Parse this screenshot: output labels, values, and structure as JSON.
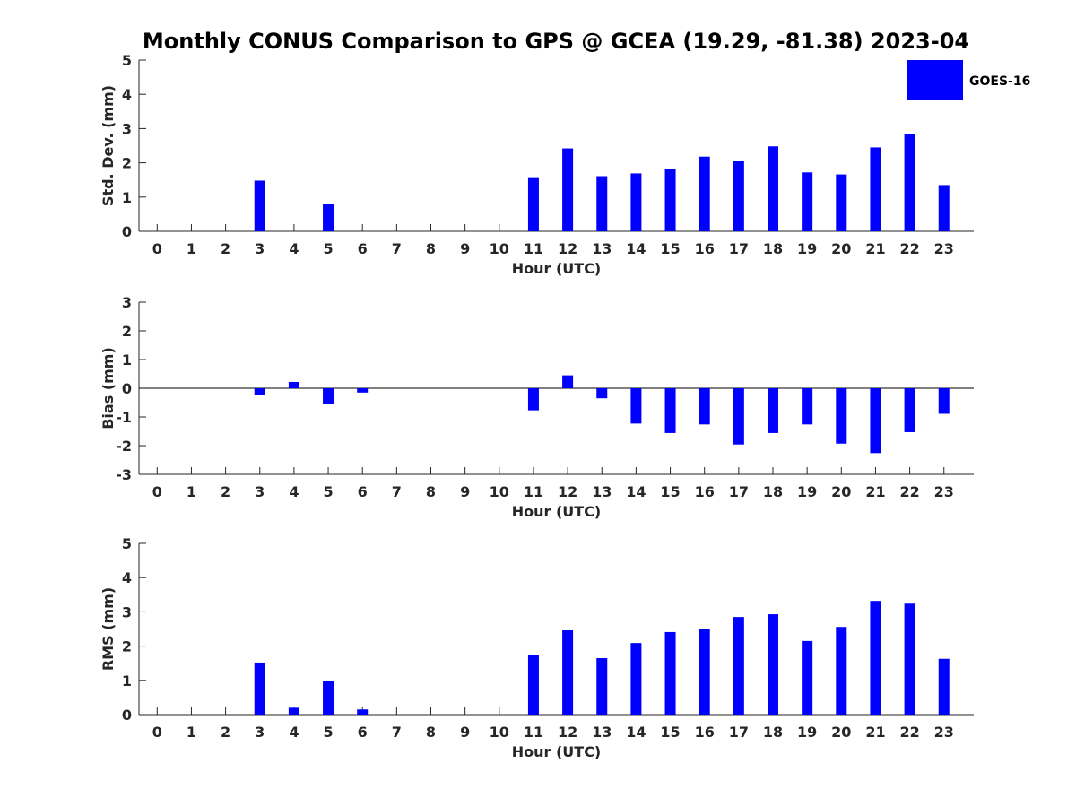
{
  "title": "Monthly CONUS Comparison to GPS @ GCEA (19.29, -81.38) 2023-04",
  "legend": {
    "label": "GOES-16",
    "color": "#0000ff"
  },
  "chart_data": [
    {
      "type": "bar",
      "xlabel": "Hour (UTC)",
      "ylabel": "Std. Dev. (mm)",
      "ylim": [
        0,
        5
      ],
      "yticks": [
        0,
        1,
        2,
        3,
        4,
        5
      ],
      "categories": [
        "0",
        "1",
        "2",
        "3",
        "4",
        "5",
        "6",
        "7",
        "8",
        "9",
        "10",
        "11",
        "12",
        "13",
        "14",
        "15",
        "16",
        "17",
        "18",
        "19",
        "20",
        "21",
        "22",
        "23"
      ],
      "series": [
        {
          "name": "GOES-16",
          "values": [
            null,
            null,
            null,
            1.48,
            null,
            0.8,
            null,
            null,
            null,
            null,
            null,
            1.58,
            2.42,
            1.61,
            1.69,
            1.82,
            2.18,
            2.05,
            2.48,
            1.72,
            1.66,
            2.45,
            2.84,
            1.35
          ]
        }
      ]
    },
    {
      "type": "bar",
      "xlabel": "Hour (UTC)",
      "ylabel": "Bias (mm)",
      "ylim": [
        -3,
        3
      ],
      "yticks": [
        -3,
        -2,
        -1,
        0,
        1,
        2,
        3
      ],
      "zero_line": true,
      "categories": [
        "0",
        "1",
        "2",
        "3",
        "4",
        "5",
        "6",
        "7",
        "8",
        "9",
        "10",
        "11",
        "12",
        "13",
        "14",
        "15",
        "16",
        "17",
        "18",
        "19",
        "20",
        "21",
        "22",
        "23"
      ],
      "series": [
        {
          "name": "GOES-16",
          "values": [
            null,
            null,
            null,
            -0.25,
            0.22,
            -0.55,
            -0.15,
            null,
            null,
            null,
            null,
            -0.77,
            0.45,
            -0.35,
            -1.23,
            -1.56,
            -1.26,
            -1.96,
            -1.56,
            -1.26,
            -1.93,
            -2.26,
            -1.53,
            -0.89
          ]
        }
      ]
    },
    {
      "type": "bar",
      "xlabel": "Hour (UTC)",
      "ylabel": "RMS (mm)",
      "ylim": [
        0,
        5
      ],
      "yticks": [
        0,
        1,
        2,
        3,
        4,
        5
      ],
      "categories": [
        "0",
        "1",
        "2",
        "3",
        "4",
        "5",
        "6",
        "7",
        "8",
        "9",
        "10",
        "11",
        "12",
        "13",
        "14",
        "15",
        "16",
        "17",
        "18",
        "19",
        "20",
        "21",
        "22",
        "23"
      ],
      "series": [
        {
          "name": "GOES-16",
          "values": [
            null,
            null,
            null,
            1.52,
            0.2,
            0.97,
            0.15,
            null,
            null,
            null,
            null,
            1.75,
            2.46,
            1.65,
            2.09,
            2.41,
            2.51,
            2.85,
            2.93,
            2.15,
            2.56,
            3.32,
            3.24,
            1.63
          ]
        }
      ]
    }
  ]
}
